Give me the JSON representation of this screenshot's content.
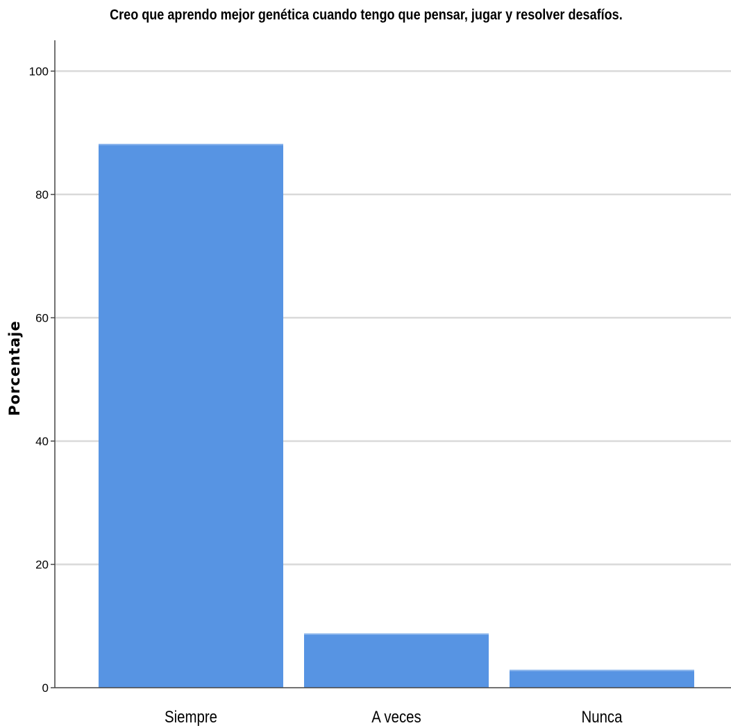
{
  "chart_data": {
    "type": "bar",
    "title": "Creo que aprendo mejor genética cuando tengo que pensar, jugar y resolver desafíos.",
    "xlabel": "",
    "ylabel": "Porcentaje",
    "categories": [
      "Siempre",
      "A veces",
      "Nunca"
    ],
    "values": [
      88.2,
      8.8,
      2.9
    ],
    "ylim": [
      0,
      105
    ],
    "yticks": [
      0,
      20,
      40,
      60,
      80,
      100
    ],
    "grid": true,
    "legend": "none",
    "bar_color": "#5794e3",
    "grid_color": "#d9d9d9"
  }
}
